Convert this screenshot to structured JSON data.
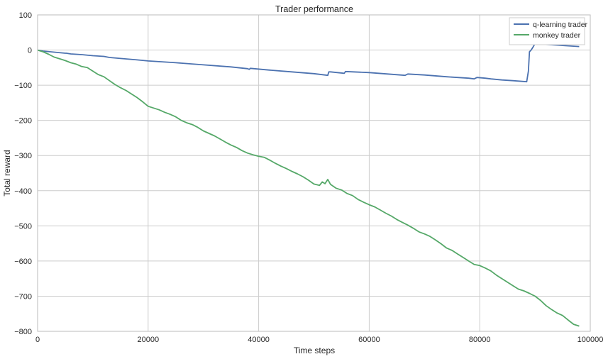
{
  "chart_data": {
    "type": "line",
    "title": "Trader performance",
    "xlabel": "Time steps",
    "ylabel": "Total reward",
    "xlim": [
      0,
      100000
    ],
    "ylim": [
      -800,
      100
    ],
    "xticks": [
      0,
      20000,
      40000,
      60000,
      80000,
      100000
    ],
    "yticks": [
      -800,
      -700,
      -600,
      -500,
      -400,
      -300,
      -200,
      -100,
      0,
      100
    ],
    "xtick_labels": [
      "0",
      "20000",
      "40000",
      "60000",
      "80000",
      "100000"
    ],
    "ytick_labels": [
      "−800",
      "−700",
      "−600",
      "−500",
      "−400",
      "−300",
      "−200",
      "−100",
      "0",
      "100"
    ],
    "grid": true,
    "legend_position": "top-right",
    "series": [
      {
        "name": "q-learning trader",
        "color": "#4c72b0",
        "points": [
          [
            0,
            0
          ],
          [
            1000,
            -3
          ],
          [
            3000,
            -6
          ],
          [
            5000,
            -9
          ],
          [
            5200,
            -9
          ],
          [
            6000,
            -11
          ],
          [
            8000,
            -13
          ],
          [
            10000,
            -16
          ],
          [
            12000,
            -18
          ],
          [
            13000,
            -21
          ],
          [
            15000,
            -24
          ],
          [
            18000,
            -28
          ],
          [
            20000,
            -31
          ],
          [
            25000,
            -36
          ],
          [
            30000,
            -42
          ],
          [
            35000,
            -48
          ],
          [
            38000,
            -53
          ],
          [
            38300,
            -55
          ],
          [
            38500,
            -52
          ],
          [
            42000,
            -57
          ],
          [
            46000,
            -62
          ],
          [
            50000,
            -67
          ],
          [
            52500,
            -72
          ],
          [
            52700,
            -62
          ],
          [
            53000,
            -62
          ],
          [
            55500,
            -66
          ],
          [
            55700,
            -61
          ],
          [
            60000,
            -64
          ],
          [
            64000,
            -69
          ],
          [
            66500,
            -72
          ],
          [
            67000,
            -68
          ],
          [
            70000,
            -71
          ],
          [
            74000,
            -76
          ],
          [
            78000,
            -80
          ],
          [
            79000,
            -82
          ],
          [
            79500,
            -78
          ],
          [
            81000,
            -80
          ],
          [
            82000,
            -82
          ],
          [
            84000,
            -85
          ],
          [
            86000,
            -87
          ],
          [
            88500,
            -90
          ],
          [
            88800,
            -60
          ],
          [
            89000,
            -5
          ],
          [
            89300,
            0
          ],
          [
            89500,
            5
          ],
          [
            89700,
            10
          ],
          [
            90000,
            18
          ],
          [
            92000,
            16
          ],
          [
            94000,
            14
          ],
          [
            96000,
            12
          ],
          [
            98000,
            10
          ]
        ]
      },
      {
        "name": "monkey trader",
        "color": "#55a868",
        "points": [
          [
            0,
            0
          ],
          [
            1000,
            -5
          ],
          [
            2000,
            -12
          ],
          [
            3000,
            -20
          ],
          [
            4000,
            -25
          ],
          [
            5000,
            -30
          ],
          [
            6000,
            -36
          ],
          [
            7000,
            -40
          ],
          [
            8000,
            -47
          ],
          [
            9000,
            -50
          ],
          [
            10000,
            -60
          ],
          [
            11000,
            -70
          ],
          [
            12000,
            -76
          ],
          [
            13000,
            -87
          ],
          [
            14000,
            -98
          ],
          [
            15000,
            -107
          ],
          [
            16000,
            -115
          ],
          [
            17000,
            -125
          ],
          [
            18000,
            -135
          ],
          [
            19000,
            -147
          ],
          [
            20000,
            -160
          ],
          [
            21000,
            -165
          ],
          [
            22000,
            -170
          ],
          [
            23000,
            -177
          ],
          [
            24000,
            -183
          ],
          [
            25000,
            -190
          ],
          [
            26000,
            -200
          ],
          [
            27000,
            -207
          ],
          [
            28000,
            -212
          ],
          [
            29000,
            -220
          ],
          [
            30000,
            -230
          ],
          [
            31000,
            -237
          ],
          [
            32000,
            -244
          ],
          [
            33000,
            -253
          ],
          [
            34000,
            -262
          ],
          [
            35000,
            -270
          ],
          [
            36000,
            -277
          ],
          [
            37000,
            -286
          ],
          [
            38000,
            -293
          ],
          [
            39000,
            -298
          ],
          [
            40000,
            -302
          ],
          [
            41000,
            -305
          ],
          [
            42000,
            -313
          ],
          [
            43000,
            -322
          ],
          [
            44000,
            -330
          ],
          [
            45000,
            -337
          ],
          [
            46000,
            -345
          ],
          [
            47000,
            -352
          ],
          [
            48000,
            -360
          ],
          [
            49000,
            -370
          ],
          [
            50000,
            -381
          ],
          [
            51000,
            -385
          ],
          [
            51500,
            -375
          ],
          [
            52000,
            -380
          ],
          [
            52500,
            -368
          ],
          [
            53000,
            -382
          ],
          [
            54000,
            -393
          ],
          [
            55000,
            -398
          ],
          [
            56000,
            -408
          ],
          [
            57000,
            -414
          ],
          [
            58000,
            -425
          ],
          [
            59000,
            -433
          ],
          [
            60000,
            -440
          ],
          [
            61000,
            -446
          ],
          [
            62000,
            -455
          ],
          [
            63000,
            -464
          ],
          [
            64000,
            -472
          ],
          [
            65000,
            -482
          ],
          [
            66000,
            -490
          ],
          [
            67000,
            -498
          ],
          [
            68000,
            -507
          ],
          [
            69000,
            -517
          ],
          [
            70000,
            -523
          ],
          [
            71000,
            -530
          ],
          [
            72000,
            -540
          ],
          [
            73000,
            -551
          ],
          [
            74000,
            -563
          ],
          [
            75000,
            -570
          ],
          [
            76000,
            -580
          ],
          [
            77000,
            -590
          ],
          [
            78000,
            -600
          ],
          [
            79000,
            -610
          ],
          [
            80000,
            -613
          ],
          [
            81000,
            -620
          ],
          [
            82000,
            -628
          ],
          [
            83000,
            -640
          ],
          [
            84000,
            -650
          ],
          [
            85000,
            -660
          ],
          [
            86000,
            -670
          ],
          [
            87000,
            -680
          ],
          [
            88000,
            -685
          ],
          [
            89000,
            -692
          ],
          [
            90000,
            -700
          ],
          [
            91000,
            -712
          ],
          [
            92000,
            -727
          ],
          [
            93000,
            -738
          ],
          [
            94000,
            -748
          ],
          [
            95000,
            -755
          ],
          [
            96000,
            -768
          ],
          [
            97000,
            -780
          ],
          [
            98000,
            -785
          ]
        ]
      }
    ]
  }
}
